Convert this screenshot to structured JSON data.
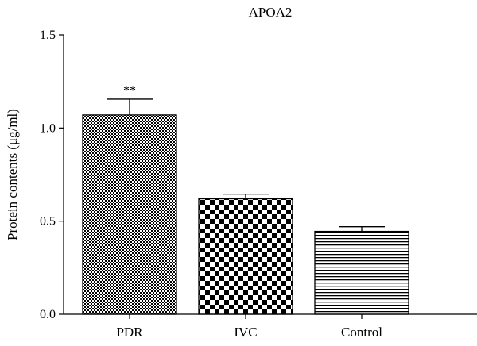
{
  "chart_data": {
    "type": "bar",
    "title": "APOA2",
    "ylabel": "Protein contents (μg/ml)",
    "xlabel": "",
    "categories": [
      "PDR",
      "IVC",
      "Control"
    ],
    "values": [
      1.07,
      0.62,
      0.445
    ],
    "errors": [
      0.085,
      0.025,
      0.025
    ],
    "annotations": [
      "**",
      "",
      ""
    ],
    "patterns": [
      "fine-checker",
      "coarse-checker",
      "horizontal-lines"
    ],
    "ylim": [
      0,
      1.5
    ],
    "yticks": [
      0.0,
      0.5,
      1.0,
      1.5
    ],
    "ytick_labels": [
      "0.0",
      "0.5",
      "1.0",
      "1.5"
    ],
    "grid": false,
    "legend": "none"
  }
}
